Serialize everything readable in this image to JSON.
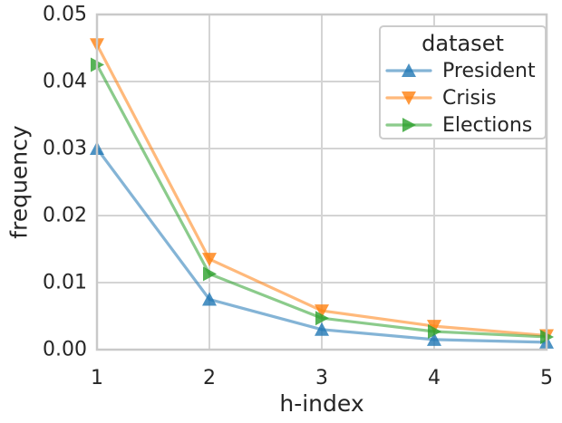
{
  "figure": {
    "background": "#ffffff"
  },
  "chart_data": {
    "type": "line",
    "title": "",
    "xlabel": "h-index",
    "ylabel": "frequency",
    "x": [
      1,
      2,
      3,
      4,
      5
    ],
    "xtick_labels": [
      "1",
      "2",
      "3",
      "4",
      "5"
    ],
    "yticks": [
      0,
      0.01,
      0.02,
      0.03,
      0.04,
      0.05
    ],
    "ytick_labels": [
      "0.00",
      "0.01",
      "0.02",
      "0.03",
      "0.04",
      "0.05"
    ],
    "xlim": [
      1,
      5
    ],
    "ylim": [
      0,
      0.05
    ],
    "grid": true,
    "legend_title": "dataset",
    "legend_position": "upper right",
    "series": [
      {
        "name": "President",
        "marker": "triangle-up",
        "color": "#1f77b4",
        "values": [
          0.03,
          0.0075,
          0.003,
          0.0015,
          0.0011
        ]
      },
      {
        "name": "Crisis",
        "marker": "triangle-down",
        "color": "#ff7f0e",
        "values": [
          0.0455,
          0.0135,
          0.0058,
          0.0035,
          0.0021
        ]
      },
      {
        "name": "Elections",
        "marker": "triangle-right",
        "color": "#2ca02c",
        "values": [
          0.0425,
          0.0113,
          0.0047,
          0.0027,
          0.0019
        ]
      }
    ],
    "style": {
      "grid_color": "#d4d4d4",
      "spine_color": "#c9c9c9",
      "text_color": "#262626",
      "line_alpha": 0.55,
      "marker_alpha": 0.8,
      "line_width": 3.2
    }
  }
}
